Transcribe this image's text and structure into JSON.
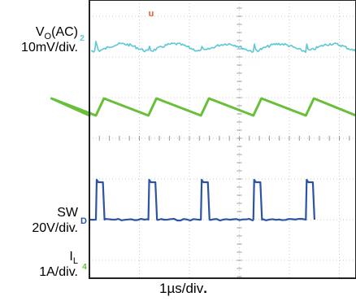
{
  "chart_data": {
    "type": "line",
    "title": "",
    "grid": true,
    "timebase": "1µs/div",
    "timebase_terminator": ".",
    "channels": [
      {
        "id": "vo",
        "marker": "2",
        "name_main": "V",
        "name_sub": "O",
        "name_suffix": "(AC)",
        "scale": "10mV/div.",
        "color": "#5bc8d4"
      },
      {
        "id": "il",
        "marker": "4",
        "name_main": "I",
        "name_sub": "L",
        "name_suffix": "",
        "scale": "1A/div.",
        "color": "#6abf3a"
      },
      {
        "id": "sw",
        "marker": "D",
        "name_main": "SW",
        "name_sub": "",
        "name_suffix": "",
        "scale": "20V/div.",
        "color": "#2d54a4"
      }
    ],
    "trigger_marker": {
      "text": "u",
      "color": "#e0632a"
    },
    "switching_period_div": 1.05,
    "pulse_width_div": 0.14
  }
}
